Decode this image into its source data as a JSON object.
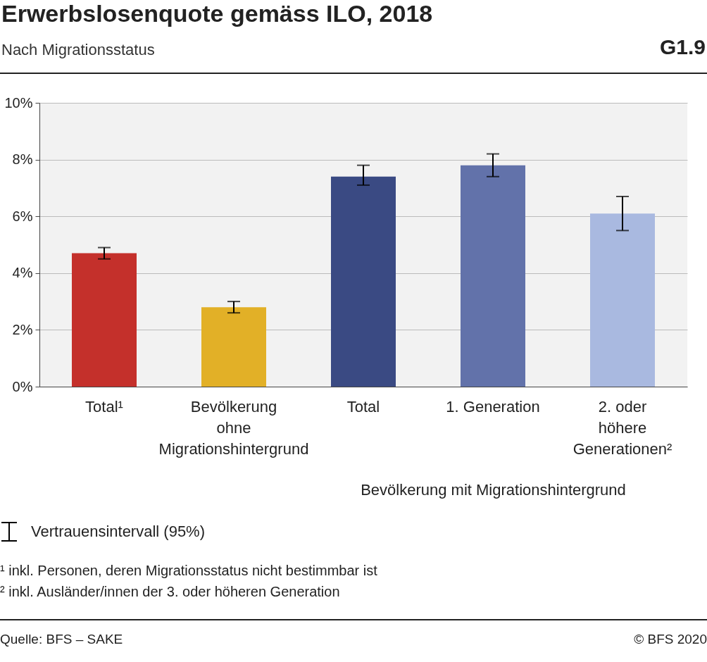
{
  "chart_data": {
    "type": "bar",
    "title": "Erwerbslosenquote gemäss ILO, 2018",
    "subtitle": "Nach Migrationsstatus",
    "categories": [
      "Total¹",
      "Bevölkerung ohne Migrationshintergrund",
      "Total",
      "1. Generation",
      "2. oder höhere Generationen²"
    ],
    "values": [
      4.7,
      2.8,
      7.4,
      7.8,
      6.1
    ],
    "colors": [
      "#c4302b",
      "#e2b027",
      "#3a4a83",
      "#6272aa",
      "#a9b9e0"
    ],
    "errors": [
      [
        4.5,
        4.9
      ],
      [
        2.6,
        3.0
      ],
      [
        7.1,
        7.8
      ],
      [
        7.4,
        8.2
      ],
      [
        5.5,
        6.7
      ]
    ],
    "ylim": [
      0,
      10
    ],
    "yticks": [
      {
        "value": 0,
        "label": "0%"
      },
      {
        "value": 2,
        "label": "2%"
      },
      {
        "value": 4,
        "label": "4%"
      },
      {
        "value": 6,
        "label": "6%"
      },
      {
        "value": 8,
        "label": "8%"
      },
      {
        "value": 10,
        "label": "10%"
      }
    ],
    "grid": "y",
    "annotations": [
      "G1.9",
      "Bevölkerung mit Migrationshintergrund",
      "Vertrauensintervall (95%)",
      "¹ inkl. Personen, deren Migrationsstatus nicht bestimmbar ist",
      "² inkl. Ausländer/innen der 3. oder höheren Generation",
      "Quelle: BFS – SAKE",
      "© BFS 2020"
    ]
  }
}
